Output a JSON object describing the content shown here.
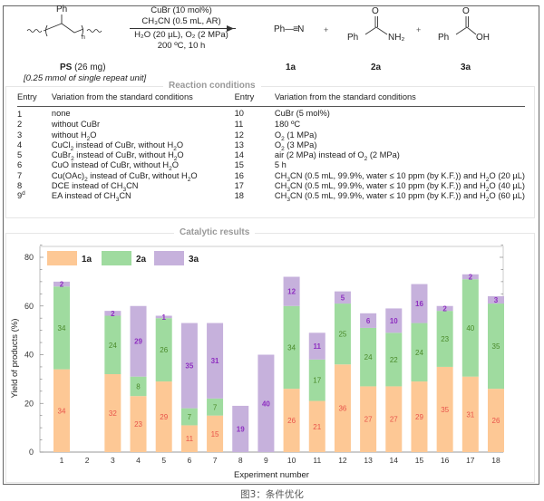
{
  "scheme": {
    "reactant": {
      "substituent": "Ph",
      "repeat_subscript": "n",
      "name": "PS",
      "amount": "(26 mg)",
      "note": "[0.25 mmol of single repeat unit]"
    },
    "conditions": {
      "line1": "CuBr (10 mol%)",
      "line2": "CH₃CN (0.5 mL, AR)",
      "line3": "H₂O (20 µL), O₂ (2 MPa)",
      "line4": "200 ºC, 10 h"
    },
    "plus": "+",
    "products": [
      {
        "id": "1a",
        "formula_left": "Ph",
        "formula_right": "N"
      },
      {
        "id": "2a",
        "formula_left": "Ph",
        "formula_right": "NH₂",
        "top_atom": "O"
      },
      {
        "id": "3a",
        "formula_left": "Ph",
        "formula_right": "OH",
        "top_atom": "O"
      }
    ]
  },
  "reaction_conditions": {
    "title": "Reaction conditions",
    "headers": {
      "entry": "Entry",
      "variation": "Variation from the standard conditions"
    },
    "left": [
      {
        "entry": "1",
        "variation": "none"
      },
      {
        "entry": "2",
        "variation": "without CuBr"
      },
      {
        "entry": "3",
        "variation": "without H<sub>2</sub>O"
      },
      {
        "entry": "4",
        "variation": "CuCl<sub>2</sub> instead of CuBr, without H<sub>2</sub>O"
      },
      {
        "entry": "5",
        "variation": "CuBr<sub>2</sub> instead of CuBr, without H<sub>2</sub>O"
      },
      {
        "entry": "6",
        "variation": "CuO instead of CuBr, without H<sub>2</sub>O"
      },
      {
        "entry": "7",
        "variation": "Cu(OAc)<sub>2</sub> instead of CuBr, without H<sub>2</sub>O"
      },
      {
        "entry": "8",
        "variation": "DCE instead of CH<sub>3</sub>CN"
      },
      {
        "entry": "9<sup>d</sup>",
        "variation": "EA instead of CH<sub>3</sub>CN"
      }
    ],
    "right": [
      {
        "entry": "10",
        "variation": "CuBr (5 mol%)"
      },
      {
        "entry": "11",
        "variation": "180 ºC"
      },
      {
        "entry": "12",
        "variation": "O<sub>2</sub> (1 MPa)"
      },
      {
        "entry": "13",
        "variation": "O<sub>2</sub> (3 MPa)"
      },
      {
        "entry": "14",
        "variation": "air (2 MPa) instead of O<sub>2</sub> (2 MPa)"
      },
      {
        "entry": "15",
        "variation": "5 h"
      },
      {
        "entry": "16",
        "variation": "CH<sub>3</sub>CN (0.5 mL, 99.9%, water ≤ 10 ppm (by K.F.)) and H<sub>2</sub>O (20 µL)"
      },
      {
        "entry": "17",
        "variation": "CH<sub>3</sub>CN (0.5 mL, 99.9%, water ≤ 10 ppm (by K.F.)) and H<sub>2</sub>O (40 µL)"
      },
      {
        "entry": "18",
        "variation": "CH<sub>3</sub>CN (0.5 mL, 99.9%, water ≤ 10 ppm (by K.F.)) and H<sub>2</sub>O (60 µL)"
      }
    ]
  },
  "chart_data": {
    "type": "bar",
    "stacked": true,
    "title": "Catalytic results",
    "xlabel": "Experiment number",
    "ylabel": "Yield of products (%)",
    "ylim": [
      0,
      85
    ],
    "yticks": [
      0,
      20,
      40,
      60,
      80
    ],
    "grid": false,
    "legend_position": "top-left",
    "categories": [
      "1",
      "2",
      "3",
      "4",
      "5",
      "6",
      "7",
      "8",
      "9",
      "10",
      "11",
      "12",
      "13",
      "14",
      "15",
      "16",
      "17",
      "18"
    ],
    "series": [
      {
        "name": "1a",
        "color": "#fdc895",
        "label_color": "#e8534a",
        "values": [
          34,
          0,
          32,
          23,
          29,
          11,
          15,
          0,
          0,
          26,
          21,
          36,
          27,
          27,
          29,
          35,
          31,
          26
        ]
      },
      {
        "name": "2a",
        "color": "#9fdb9f",
        "label_color": "#4a8a2a",
        "values": [
          34,
          0,
          24,
          8,
          26,
          7,
          7,
          0,
          0,
          34,
          17,
          25,
          24,
          22,
          24,
          23,
          40,
          35
        ]
      },
      {
        "name": "3a",
        "color": "#c6b1dc",
        "label_color": "#8e2fc0",
        "values": [
          2,
          0,
          2,
          29,
          1,
          35,
          31,
          19,
          40,
          12,
          11,
          5,
          6,
          10,
          16,
          2,
          2,
          3
        ]
      }
    ]
  },
  "caption": "图3：条件优化"
}
